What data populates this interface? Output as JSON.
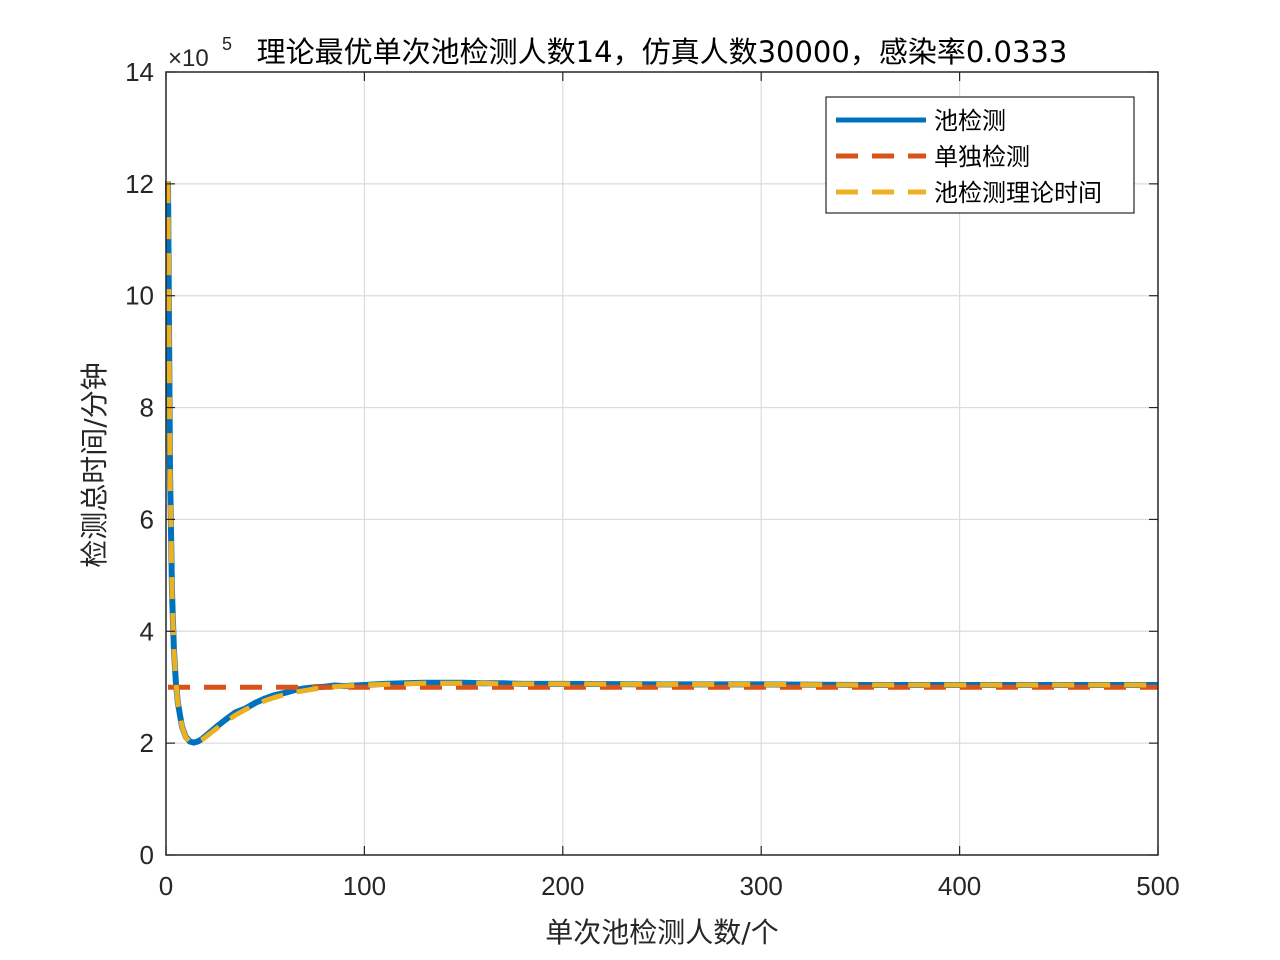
{
  "chart_data": {
    "type": "line",
    "title": "理论最优单次池检测人数14，仿真人数30000，感染率0.0333",
    "xlabel": "单次池检测人数/个",
    "ylabel": "检测总时间/分钟",
    "y_exponent_label": "×10",
    "y_exponent_power": "5",
    "xlim": [
      0,
      500
    ],
    "ylim": [
      0,
      14
    ],
    "x_ticks": [
      0,
      100,
      200,
      300,
      400,
      500
    ],
    "y_ticks": [
      0,
      2,
      4,
      6,
      8,
      10,
      12,
      14
    ],
    "x_tick_labels": [
      "0",
      "100",
      "200",
      "300",
      "400",
      "500"
    ],
    "y_tick_labels": [
      "0",
      "2",
      "4",
      "6",
      "8",
      "10",
      "12",
      "14"
    ],
    "grid": true,
    "legend_position": "top-right",
    "series": [
      {
        "name": "池检测",
        "color": "#0072BD",
        "style": "solid",
        "x": [
          1,
          2,
          3,
          4,
          5,
          6,
          8,
          10,
          12,
          14,
          16,
          18,
          20,
          25,
          30,
          35,
          40,
          45,
          50,
          55,
          60,
          65,
          70,
          75,
          80,
          85,
          90,
          95,
          100,
          110,
          120,
          130,
          140,
          150,
          160,
          170,
          180,
          200,
          250,
          300,
          350,
          400,
          450,
          500
        ],
        "y": [
          12.05,
          6.9,
          4.7,
          3.68,
          3.08,
          2.72,
          2.3,
          2.11,
          2.03,
          2.01,
          2.03,
          2.07,
          2.13,
          2.28,
          2.42,
          2.55,
          2.62,
          2.72,
          2.8,
          2.86,
          2.9,
          2.95,
          2.98,
          3.0,
          3.01,
          3.03,
          3.02,
          3.03,
          3.04,
          3.06,
          3.07,
          3.08,
          3.08,
          3.08,
          3.07,
          3.07,
          3.06,
          3.06,
          3.05,
          3.05,
          3.04,
          3.04,
          3.04,
          3.04
        ]
      },
      {
        "name": "单独检测",
        "color": "#D95319",
        "style": "dashed",
        "x": [
          1,
          500
        ],
        "y": [
          3.0,
          3.0
        ]
      },
      {
        "name": "池检测理论时间",
        "color": "#EDB120",
        "style": "dashed",
        "x": [
          1,
          2,
          3,
          4,
          5,
          6,
          8,
          10,
          12,
          14,
          16,
          18,
          20,
          25,
          30,
          35,
          40,
          45,
          50,
          55,
          60,
          65,
          70,
          75,
          80,
          85,
          90,
          95,
          100,
          110,
          120,
          130,
          140,
          150,
          160,
          170,
          180,
          200,
          250,
          300,
          350,
          400,
          450,
          500
        ],
        "y": [
          12.05,
          6.9,
          4.7,
          3.68,
          3.08,
          2.72,
          2.3,
          2.1,
          2.02,
          2.0,
          2.02,
          2.06,
          2.11,
          2.25,
          2.38,
          2.5,
          2.6,
          2.68,
          2.76,
          2.82,
          2.87,
          2.91,
          2.94,
          2.97,
          2.99,
          3.01,
          3.02,
          3.03,
          3.04,
          3.05,
          3.06,
          3.07,
          3.07,
          3.07,
          3.07,
          3.06,
          3.06,
          3.06,
          3.05,
          3.05,
          3.04,
          3.04,
          3.04,
          3.04
        ]
      }
    ]
  }
}
